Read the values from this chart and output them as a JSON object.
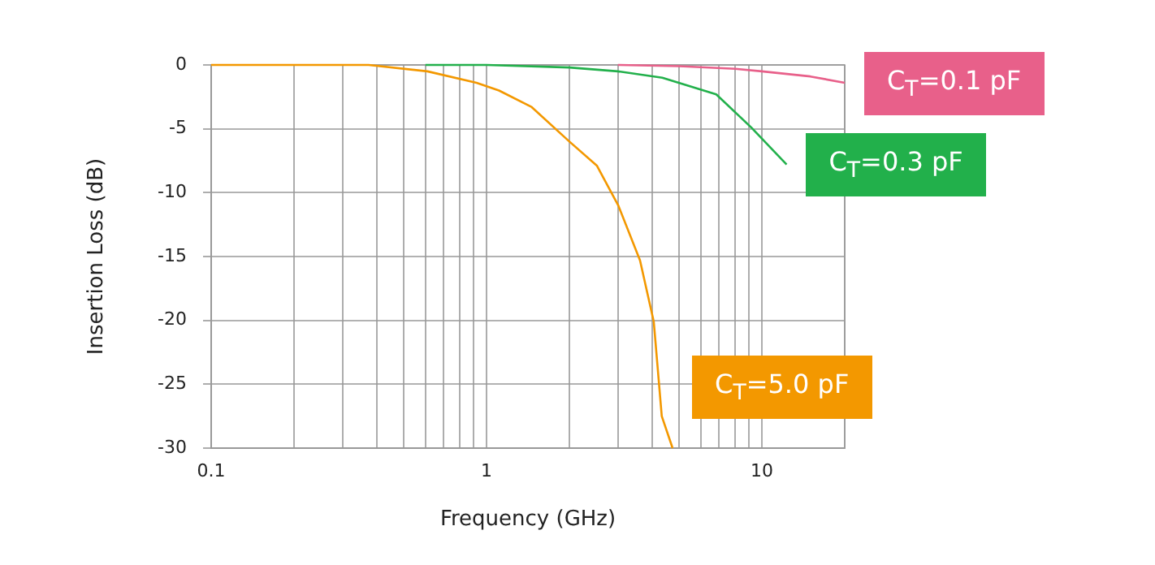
{
  "chart_data": {
    "type": "line",
    "xlabel": "Frequency (GHz)",
    "ylabel": "Insertion Loss (dB)",
    "log": "x",
    "grid": true,
    "legend": false,
    "marker": "none",
    "line_style": "solid",
    "xlim": [
      0.1,
      20
    ],
    "ylim": [
      -30,
      0
    ],
    "xticks": [
      0.1,
      {
        "value": 0.2,
        "label": null
      },
      {
        "value": 0.3,
        "label": null
      },
      {
        "value": 0.4,
        "label": null
      },
      {
        "value": 0.5,
        "label": null
      },
      {
        "value": 0.6,
        "label": null
      },
      {
        "value": 0.7,
        "label": null
      },
      {
        "value": 0.8,
        "label": null
      },
      {
        "value": 0.9,
        "label": null
      },
      1,
      {
        "value": 2,
        "label": null
      },
      {
        "value": 3,
        "label": null
      },
      {
        "value": 4,
        "label": null
      },
      {
        "value": 5,
        "label": null
      },
      {
        "value": 6,
        "label": null
      },
      {
        "value": 7,
        "label": null
      },
      {
        "value": 8,
        "label": null
      },
      {
        "value": 9,
        "label": null
      },
      10,
      {
        "value": 20,
        "label": null
      }
    ],
    "yticks": [
      -30,
      -25,
      -20,
      -15,
      -10,
      -5,
      0
    ],
    "series": [
      {
        "name": "C$_{T}$=0.1 pF",
        "color": "#e8608a",
        "x": [
          3,
          5,
          8,
          10,
          15,
          20
        ],
        "values": [
          0,
          -0.1,
          -0.3,
          -0.5,
          -0.9,
          -1.4
        ]
      },
      {
        "name": "C$_{T}$=0.3 pF",
        "color": "#22b04b",
        "x": [
          0.6,
          1,
          2,
          3,
          4.35,
          6.83,
          9.16,
          12.3
        ],
        "values": [
          0,
          0,
          -0.2,
          -0.5,
          -1.0,
          -2.3,
          -4.9,
          -7.8
        ]
      },
      {
        "name": "C$_{T}$=5.0 pF",
        "color": "#f39800",
        "x": [
          0.1,
          0.373,
          0.61,
          0.92,
          1.11,
          1.46,
          2.0,
          2.52,
          3.01,
          3.61,
          4.05,
          4.33,
          4.74
        ],
        "values": [
          0,
          0,
          -0.5,
          -1.4,
          -2.0,
          -3.3,
          -6.0,
          -7.9,
          -11.0,
          -15.3,
          -20.1,
          -27.5,
          -30
        ]
      }
    ]
  }
}
